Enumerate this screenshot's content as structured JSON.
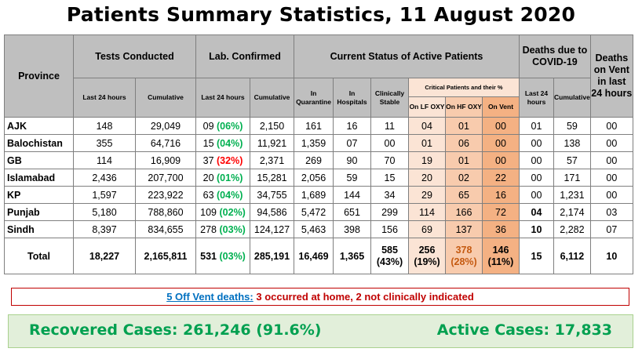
{
  "title": "Patients Summary Statistics, 11 August 2020",
  "headers": {
    "province": "Province",
    "tests": "Tests Conducted",
    "lab": "Lab. Confirmed",
    "status": "Current Status of Active Patients",
    "deaths": "Deaths due to COVID-19",
    "vent_deaths": "Deaths on Vent in last 24 hours",
    "last24": "Last 24 hours",
    "cumulative": "Cumulative",
    "in_quarantine": "In Quarantine",
    "in_hospitals": "In Hospitals",
    "clinically_stable": "Clinically Stable",
    "critical": "Critical Patients and their %",
    "on_lf_oxy": "On LF OXY",
    "on_hf_oxy": "On HF OXY",
    "on_vent": "On Vent",
    "d_last24": "Last 24 hours",
    "d_cumulative": "Cumulative"
  },
  "rows": [
    {
      "province": "AJK",
      "tests_24h": "148",
      "tests_cum": "29,049",
      "lab_24h": "09",
      "lab_pct": "(06%)",
      "lab_cum": "2,150",
      "quarantine": "161",
      "hospitals": "16",
      "stable": "11",
      "lf_oxy": "04",
      "hf_oxy": "01",
      "on_vent": "00",
      "deaths_24h": "01",
      "deaths_cum": "59",
      "vent_deaths": "00"
    },
    {
      "province": "Balochistan",
      "tests_24h": "355",
      "tests_cum": "64,716",
      "lab_24h": "15",
      "lab_pct": "(04%)",
      "lab_cum": "11,921",
      "quarantine": "1,359",
      "hospitals": "07",
      "stable": "00",
      "lf_oxy": "01",
      "hf_oxy": "06",
      "on_vent": "00",
      "deaths_24h": "00",
      "deaths_cum": "138",
      "vent_deaths": "00"
    },
    {
      "province": "GB",
      "tests_24h": "114",
      "tests_cum": "16,909",
      "lab_24h": "37",
      "lab_pct": "(32%)",
      "lab_cum": "2,371",
      "quarantine": "269",
      "hospitals": "90",
      "stable": "70",
      "lf_oxy": "19",
      "hf_oxy": "01",
      "on_vent": "00",
      "deaths_24h": "00",
      "deaths_cum": "57",
      "vent_deaths": "00"
    },
    {
      "province": "Islamabad",
      "tests_24h": "2,436",
      "tests_cum": "207,700",
      "lab_24h": "20",
      "lab_pct": "(01%)",
      "lab_cum": "15,281",
      "quarantine": "2,056",
      "hospitals": "59",
      "stable": "15",
      "lf_oxy": "20",
      "hf_oxy": "02",
      "on_vent": "22",
      "deaths_24h": "00",
      "deaths_cum": "171",
      "vent_deaths": "00"
    },
    {
      "province": "KP",
      "tests_24h": "1,597",
      "tests_cum": "223,922",
      "lab_24h": "63",
      "lab_pct": "(04%)",
      "lab_cum": "34,755",
      "quarantine": "1,689",
      "hospitals": "144",
      "stable": "34",
      "lf_oxy": "29",
      "hf_oxy": "65",
      "on_vent": "16",
      "deaths_24h": "00",
      "deaths_cum": "1,231",
      "vent_deaths": "00"
    },
    {
      "province": "Punjab",
      "tests_24h": "5,180",
      "tests_cum": "788,860",
      "lab_24h": "109",
      "lab_pct": "(02%)",
      "lab_cum": "94,586",
      "quarantine": "5,472",
      "hospitals": "651",
      "stable": "299",
      "lf_oxy": "114",
      "hf_oxy": "166",
      "on_vent": "72",
      "deaths_24h": "04",
      "deaths_cum": "2,174",
      "vent_deaths": "03"
    },
    {
      "province": "Sindh",
      "tests_24h": "8,397",
      "tests_cum": "834,655",
      "lab_24h": "278",
      "lab_pct": "(03%)",
      "lab_cum": "124,127",
      "quarantine": "5,463",
      "hospitals": "398",
      "stable": "156",
      "lf_oxy": "69",
      "hf_oxy": "137",
      "on_vent": "36",
      "deaths_24h": "10",
      "deaths_cum": "2,282",
      "vent_deaths": "07"
    }
  ],
  "total": {
    "label": "Total",
    "tests_24h": "18,227",
    "tests_cum": "2,165,811",
    "lab_24h": "531",
    "lab_pct": "(03%)",
    "lab_cum": "285,191",
    "quarantine": "16,469",
    "hospitals": "1,365",
    "stable": "585",
    "stable_pct": "(43%)",
    "lf_oxy": "256",
    "lf_pct": "(19%)",
    "hf_oxy": "378",
    "hf_pct": "(28%)",
    "on_vent": "146",
    "vent_pct": "(11%)",
    "deaths_24h": "15",
    "deaths_cum": "6,112",
    "vent_deaths": "10"
  },
  "note": {
    "link": "5 Off Vent deaths:",
    "text": "3 occurred at home, 2 not clinically indicated"
  },
  "footer": {
    "recovered": "Recovered Cases: 261,246 (91.6%)",
    "active": "Active Cases: 17,833"
  },
  "colors": {
    "header_bg": "#bfbfbf",
    "lf_oxy": "#fbe4d5",
    "hf_oxy": "#f8cbad",
    "on_vent": "#f4b183",
    "green_text": "#00b050",
    "red_text": "#ff0000",
    "footer_bg": "#e2efda"
  }
}
